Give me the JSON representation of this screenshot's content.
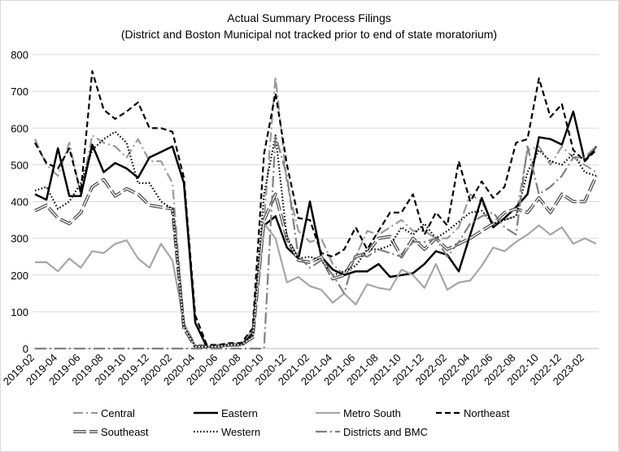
{
  "chart_data": {
    "type": "line",
    "title": "Actual Summary Process Filings",
    "subtitle": "(District and Boston Municipal not tracked prior to end of state moratorium)",
    "xlabel": "",
    "ylabel": "",
    "ylim": [
      0,
      800
    ],
    "yticks": [
      0,
      100,
      200,
      300,
      400,
      500,
      600,
      700,
      800
    ],
    "grid": true,
    "legend_position": "bottom",
    "categories": [
      "2019-02",
      "2019-03",
      "2019-04",
      "2019-05",
      "2019-06",
      "2019-07",
      "2019-08",
      "2019-09",
      "2019-10",
      "2019-11",
      "2019-12",
      "2020-01",
      "2020-02",
      "2020-03",
      "2020-04",
      "2020-05",
      "2020-06",
      "2020-07",
      "2020-08",
      "2020-09",
      "2020-10",
      "2020-11",
      "2020-12",
      "2021-01",
      "2021-02",
      "2021-03",
      "2021-04",
      "2021-05",
      "2021-06",
      "2021-07",
      "2021-08",
      "2021-09",
      "2021-10",
      "2021-11",
      "2021-12",
      "2022-01",
      "2022-02",
      "2022-03",
      "2022-04",
      "2022-05",
      "2022-06",
      "2022-07",
      "2022-08",
      "2022-09",
      "2022-10",
      "2022-11",
      "2022-12",
      "2023-01",
      "2023-02",
      "2023-03"
    ],
    "xtick_labels": [
      "2019-02",
      "2019-04",
      "2019-06",
      "2019-08",
      "2019-10",
      "2019-12",
      "2020-02",
      "2020-04",
      "2020-06",
      "2020-08",
      "2020-10",
      "2020-12",
      "2021-02",
      "2021-04",
      "2021-06",
      "2021-08",
      "2021-10",
      "2021-12",
      "2022-02",
      "2022-04",
      "2022-06",
      "2022-08",
      "2022-10",
      "2022-12",
      "2023-02"
    ],
    "series": [
      {
        "name": "Central",
        "color": "#9a9a9a",
        "values": [
          570,
          500,
          470,
          560,
          420,
          580,
          560,
          550,
          520,
          570,
          510,
          510,
          450,
          70,
          10,
          10,
          10,
          10,
          10,
          50,
          350,
          740,
          450,
          320,
          290,
          300,
          230,
          200,
          250,
          320,
          310,
          330,
          350,
          320,
          320,
          300,
          300,
          330,
          420,
          400,
          340,
          350,
          360,
          540,
          550,
          500,
          550,
          520,
          500,
          480
        ]
      },
      {
        "name": "Eastern",
        "color": "#000000",
        "values": [
          420,
          405,
          545,
          415,
          415,
          555,
          480,
          505,
          490,
          465,
          520,
          535,
          550,
          450,
          70,
          5,
          5,
          10,
          10,
          40,
          335,
          360,
          275,
          245,
          400,
          250,
          215,
          200,
          210,
          210,
          230,
          195,
          200,
          205,
          230,
          265,
          255,
          210,
          310,
          410,
          330,
          355,
          385,
          420,
          575,
          570,
          555,
          645,
          510,
          550
        ]
      },
      {
        "name": "Metro South",
        "color": "#a6a6a6",
        "values": [
          235,
          235,
          210,
          245,
          220,
          265,
          260,
          285,
          295,
          245,
          220,
          285,
          240,
          70,
          5,
          5,
          5,
          10,
          10,
          30,
          340,
          300,
          180,
          195,
          170,
          160,
          125,
          150,
          120,
          175,
          165,
          160,
          215,
          200,
          165,
          230,
          160,
          180,
          185,
          225,
          275,
          265,
          290,
          310,
          335,
          310,
          330,
          285,
          300,
          285
        ]
      },
      {
        "name": "Northeast",
        "color": "#000000",
        "values": [
          560,
          505,
          490,
          545,
          425,
          755,
          650,
          625,
          645,
          670,
          600,
          600,
          590,
          465,
          90,
          10,
          10,
          15,
          15,
          55,
          530,
          695,
          500,
          355,
          350,
          260,
          250,
          270,
          330,
          270,
          320,
          370,
          370,
          420,
          310,
          370,
          335,
          510,
          400,
          455,
          410,
          440,
          560,
          570,
          735,
          630,
          665,
          540,
          510,
          540
        ]
      },
      {
        "name": "Southeast",
        "color": "#4d4d4d",
        "values": [
          375,
          390,
          355,
          340,
          370,
          440,
          460,
          415,
          435,
          420,
          390,
          385,
          380,
          55,
          5,
          5,
          5,
          10,
          10,
          30,
          350,
          420,
          300,
          240,
          235,
          250,
          190,
          200,
          250,
          260,
          300,
          305,
          250,
          300,
          270,
          300,
          270,
          285,
          300,
          320,
          340,
          370,
          380,
          370,
          410,
          370,
          420,
          400,
          400,
          470
        ]
      },
      {
        "name": "Western",
        "color": "#000000",
        "values": [
          430,
          440,
          380,
          400,
          450,
          540,
          570,
          590,
          560,
          450,
          450,
          400,
          380,
          60,
          5,
          5,
          5,
          10,
          10,
          35,
          420,
          580,
          300,
          245,
          250,
          240,
          200,
          210,
          225,
          270,
          270,
          280,
          330,
          310,
          340,
          300,
          320,
          345,
          370,
          375,
          340,
          350,
          360,
          480,
          540,
          510,
          500,
          530,
          480,
          470
        ]
      },
      {
        "name": "Districts and BMC",
        "color": "#808080",
        "values": [
          0,
          0,
          0,
          0,
          0,
          0,
          0,
          0,
          0,
          0,
          0,
          0,
          0,
          0,
          0,
          0,
          0,
          0,
          0,
          0,
          0,
          580,
          470,
          250,
          220,
          240,
          200,
          150,
          260,
          250,
          270,
          260,
          250,
          290,
          290,
          300,
          250,
          290,
          340,
          360,
          370,
          330,
          310,
          550,
          420,
          440,
          470,
          520,
          520,
          550
        ]
      }
    ]
  }
}
